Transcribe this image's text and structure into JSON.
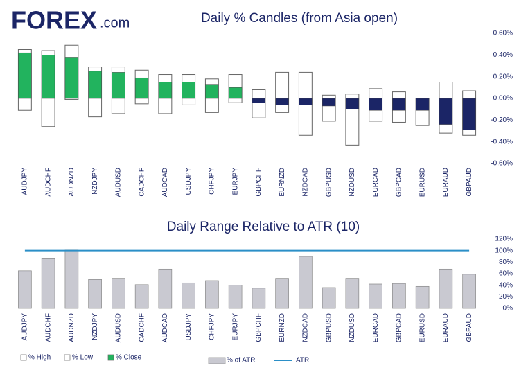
{
  "brand": {
    "name": "FOREX",
    "suffix": ".com"
  },
  "chart_data": [
    {
      "type": "candlestick",
      "title": "Daily % Candles (from Asia open)",
      "categories": [
        "AUDJPY",
        "AUDCHF",
        "AUDNZD",
        "NZDJPY",
        "AUDUSD",
        "CADCHF",
        "AUDCAD",
        "USDJPY",
        "CHFJPY",
        "EURJPY",
        "GBPCHF",
        "EURNZD",
        "NZDCAD",
        "GBPUSD",
        "NZDUSD",
        "EURCAD",
        "GBPCAD",
        "EURUSD",
        "EURAUD",
        "GBPAUD"
      ],
      "series": [
        {
          "name": "% High",
          "color": "#ffffff",
          "values": [
            0.45,
            0.44,
            0.49,
            0.29,
            0.29,
            0.26,
            0.22,
            0.22,
            0.18,
            0.22,
            0.08,
            0.24,
            0.24,
            0.03,
            0.04,
            0.09,
            0.06,
            0.0,
            0.15,
            0.07
          ]
        },
        {
          "name": "% Low",
          "color": "#ffffff",
          "values": [
            -0.11,
            -0.26,
            -0.01,
            -0.17,
            -0.14,
            -0.05,
            -0.14,
            -0.06,
            -0.13,
            -0.04,
            -0.18,
            -0.13,
            -0.34,
            -0.21,
            -0.43,
            -0.21,
            -0.22,
            -0.25,
            -0.32,
            -0.34
          ]
        },
        {
          "name": "% Close",
          "color": "#22b35e",
          "negative_color": "#1b2566",
          "values": [
            0.42,
            0.4,
            0.38,
            0.25,
            0.24,
            0.19,
            0.15,
            0.15,
            0.13,
            0.1,
            -0.04,
            -0.06,
            -0.06,
            -0.07,
            -0.1,
            -0.11,
            -0.11,
            -0.11,
            -0.24,
            -0.29
          ]
        }
      ],
      "ylim": [
        -0.6,
        0.6
      ],
      "yticks": [
        {
          "value": -0.6,
          "label": "-0.60%"
        },
        {
          "value": -0.4,
          "label": "-0.40%"
        },
        {
          "value": -0.2,
          "label": "-0.20%"
        },
        {
          "value": 0,
          "label": "0.00%"
        },
        {
          "value": 0.2,
          "label": "0.20%"
        },
        {
          "value": 0.4,
          "label": "0.40%"
        },
        {
          "value": 0.6,
          "label": "0.60%"
        }
      ]
    },
    {
      "type": "bar",
      "title": "Daily Range Relative to ATR (10)",
      "categories": [
        "AUDJPY",
        "AUDCHF",
        "AUDNZD",
        "NZDJPY",
        "AUDUSD",
        "CADCHF",
        "AUDCAD",
        "USDJPY",
        "CHFJPY",
        "EURJPY",
        "GBPCHF",
        "EURNZD",
        "NZDCAD",
        "GBPUSD",
        "NZDUSD",
        "EURCAD",
        "GBPCAD",
        "EURUSD",
        "EURAUD",
        "GBPAUD"
      ],
      "series": [
        {
          "name": "% of ATR",
          "type": "bar",
          "color": "#c9c9d1",
          "values": [
            65,
            86,
            101,
            50,
            52,
            41,
            68,
            44,
            48,
            40,
            35,
            52,
            90,
            36,
            52,
            42,
            43,
            38,
            68,
            59
          ]
        },
        {
          "name": "ATR",
          "type": "line",
          "color": "#2b8fc7",
          "values": [
            100,
            100,
            100,
            100,
            100,
            100,
            100,
            100,
            100,
            100,
            100,
            100,
            100,
            100,
            100,
            100,
            100,
            100,
            100,
            100
          ]
        }
      ],
      "ylim": [
        0,
        120
      ],
      "yticks": [
        {
          "value": 0,
          "label": "0%"
        },
        {
          "value": 20,
          "label": "20%"
        },
        {
          "value": 40,
          "label": "40%"
        },
        {
          "value": 60,
          "label": "60%"
        },
        {
          "value": 80,
          "label": "80%"
        },
        {
          "value": 100,
          "label": "100%"
        },
        {
          "value": 120,
          "label": "120%"
        }
      ]
    }
  ]
}
